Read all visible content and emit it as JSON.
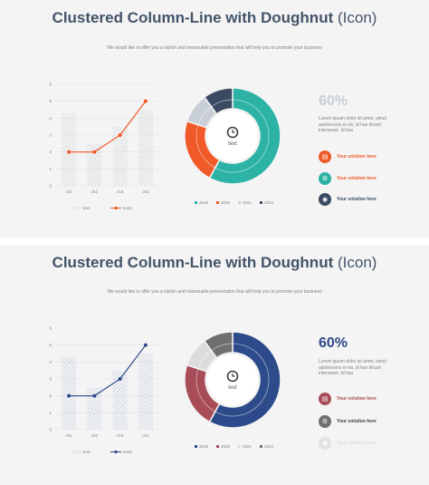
{
  "slides": [
    {
      "title_bold": "Clustered Column-Line with Doughnut",
      "title_light": "(Icon)",
      "subtitle": "We would like to offer you a stylish and reasonable presentation that will help you to promote your business",
      "stat": "60%",
      "description": [
        "Lorem ipsum dolor sit amet, simul",
        "adolescens ei vis, id has dicant",
        "interesset. Id has"
      ],
      "items": [
        {
          "label": "Your solution here",
          "icon": "document-icon",
          "color": "#f05a28",
          "text_color": "#f05a28"
        },
        {
          "label": "Your solution here",
          "icon": "gear-icon",
          "color": "#2db3a6",
          "text_color": "#f05a28"
        },
        {
          "label": "Your solution here",
          "icon": "location-icon",
          "color": "#3b4a63",
          "text_color": "#3b4a63"
        }
      ],
      "colors": {
        "stat": "#c9cfd6",
        "line": "#f05a28",
        "hatch": "#c5ccd4"
      }
    },
    {
      "title_bold": "Clustered Column-Line with Doughnut",
      "title_light": "(Icon)",
      "subtitle": "We would like to offer you a stylish and reasonable presentation that will help you to promote your business",
      "stat": "60%",
      "description": [
        "Lorem ipsum dolor sit amet, simul",
        "adolescens ei vis, id has dicant",
        "interesset. Id has"
      ],
      "items": [
        {
          "label": "Your solution here",
          "icon": "document-icon",
          "color": "#a84c58",
          "text_color": "#a84c58"
        },
        {
          "label": "Your solution here",
          "icon": "gear-icon",
          "color": "#6f6f6f",
          "text_color": "#3f3f3f"
        },
        {
          "label": "Your solution here",
          "icon": "location-icon",
          "color": "#e3e3e3",
          "text_color": "#dcdcdc"
        }
      ],
      "colors": {
        "stat": "#2d4a8a",
        "line": "#2d4a8a",
        "hatch": "#b7c3d8"
      }
    }
  ],
  "chart_data": [
    {
      "type": "bar+line",
      "categories": [
        "ch1",
        "ch2",
        "ch3",
        "ch4"
      ],
      "series": [
        {
          "name": "text",
          "type": "bar",
          "values": [
            4.3,
            2.5,
            3.5,
            4.5
          ]
        },
        {
          "name": "text2",
          "type": "line",
          "values": [
            2,
            2,
            3,
            5
          ]
        }
      ],
      "ylim": [
        0,
        6
      ],
      "yticks": [
        0,
        1,
        2,
        3,
        4,
        5,
        6
      ],
      "legend": "bottom"
    },
    {
      "type": "pie",
      "donut": true,
      "center_label": "text",
      "categories": [
        "2019",
        "2020",
        "2021",
        "2022"
      ],
      "values": [
        58,
        22,
        10,
        10
      ],
      "colors": [
        "#2db3a6",
        "#f05a28",
        "#c9cfd6",
        "#3b4a63"
      ],
      "legend": "bottom"
    },
    {
      "type": "bar+line",
      "categories": [
        "ch1",
        "ch2",
        "ch3",
        "ch4"
      ],
      "series": [
        {
          "name": "text",
          "type": "bar",
          "values": [
            4.3,
            2.5,
            3.5,
            4.5
          ]
        },
        {
          "name": "text2",
          "type": "line",
          "values": [
            2,
            2,
            3,
            5
          ]
        }
      ],
      "ylim": [
        0,
        6
      ],
      "yticks": [
        0,
        1,
        2,
        3,
        4,
        5,
        6
      ],
      "legend": "bottom"
    },
    {
      "type": "pie",
      "donut": true,
      "center_label": "text",
      "categories": [
        "2019",
        "2020",
        "2021",
        "2022"
      ],
      "values": [
        58,
        22,
        10,
        10
      ],
      "colors": [
        "#2d4a8a",
        "#a84c58",
        "#dcdcdc",
        "#6f6f6f"
      ],
      "legend": "bottom"
    }
  ]
}
